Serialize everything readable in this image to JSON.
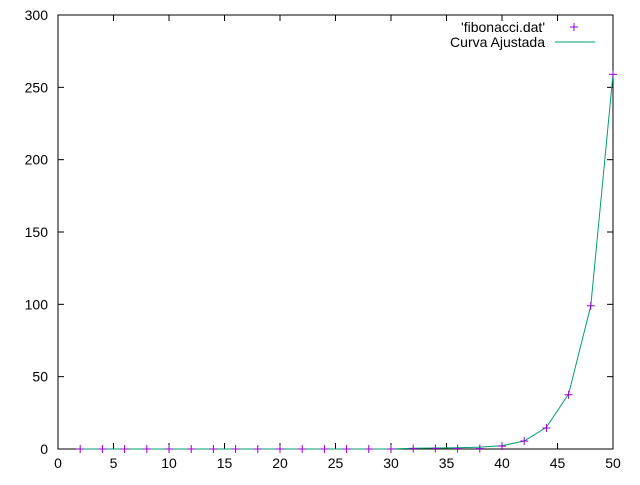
{
  "chart_data": {
    "type": "scatter",
    "title": "",
    "xlabel": "",
    "ylabel": "",
    "xlim": [
      0,
      50
    ],
    "ylim": [
      0,
      300
    ],
    "x_ticks": [
      0,
      5,
      10,
      15,
      20,
      25,
      30,
      35,
      40,
      45,
      50
    ],
    "y_ticks": [
      0,
      50,
      100,
      150,
      200,
      250,
      300
    ],
    "grid": false,
    "legend_position": "top-right",
    "series": [
      {
        "name": "'fibonacci.dat'",
        "kind": "points",
        "marker": "plus",
        "color": "#9400d3",
        "x": [
          2,
          4,
          6,
          8,
          10,
          12,
          14,
          16,
          18,
          20,
          22,
          24,
          26,
          28,
          30,
          32,
          34,
          36,
          38,
          40,
          42,
          44,
          46,
          48,
          50
        ],
        "y": [
          0,
          0,
          0,
          0,
          0,
          0,
          0,
          0,
          0,
          0,
          0,
          0,
          0,
          0,
          0,
          0.3,
          0.4,
          0.3,
          0.3,
          2,
          5.5,
          14.5,
          37.5,
          99,
          259
        ]
      },
      {
        "name": "Curva Ajustada",
        "kind": "line",
        "color": "#009e73",
        "x": [
          2,
          4,
          6,
          8,
          10,
          12,
          14,
          16,
          18,
          20,
          22,
          24,
          26,
          28,
          30,
          32,
          34,
          36,
          38,
          40,
          42,
          44,
          46,
          48,
          50
        ],
        "y": [
          0,
          0,
          0,
          0,
          0,
          0,
          0,
          0,
          0,
          0,
          0,
          0,
          0,
          0,
          0,
          0.5,
          0.7,
          0.9,
          1.3,
          2.3,
          5.5,
          15,
          38,
          99,
          259
        ]
      }
    ]
  }
}
